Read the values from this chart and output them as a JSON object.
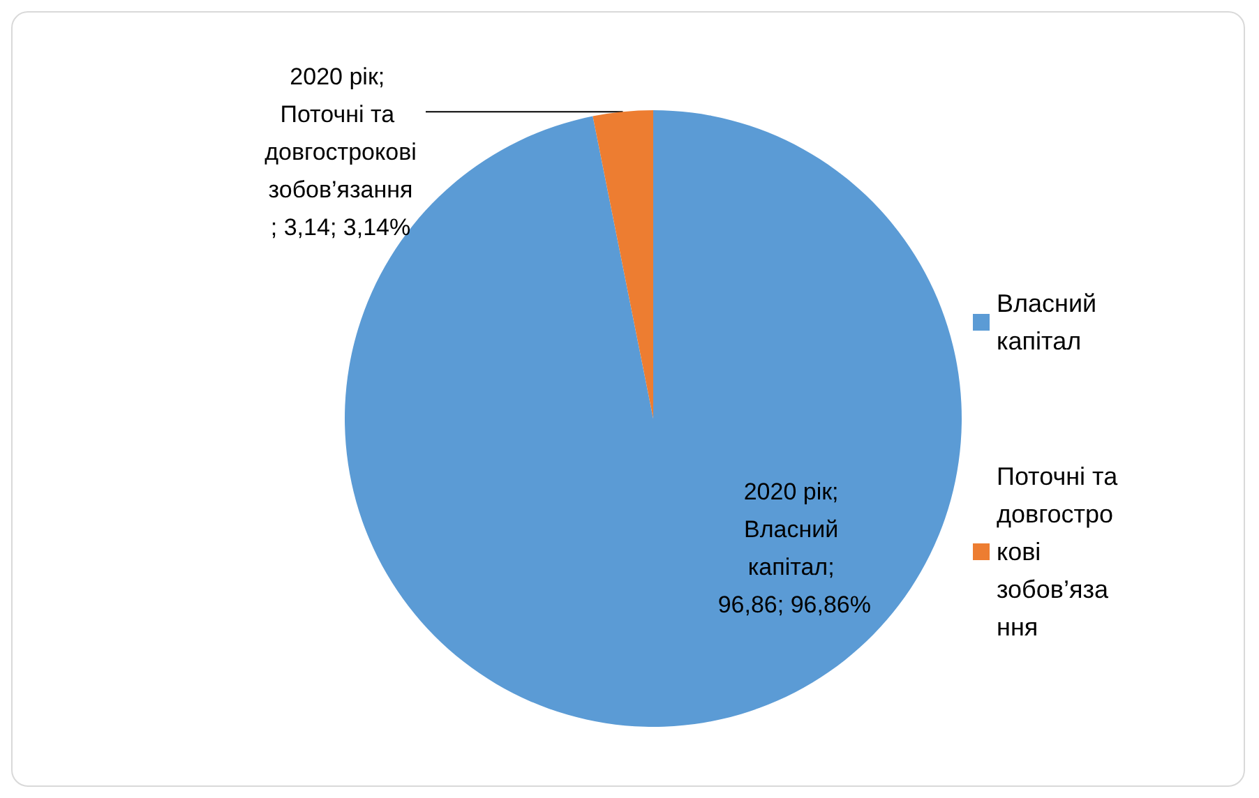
{
  "chart_data": {
    "type": "pie",
    "categories": [
      "Власний капітал",
      "Поточні та довгострокові зобов’язання"
    ],
    "values": [
      96.86,
      3.14
    ],
    "colors": [
      "#5b9bd5",
      "#ed7d31"
    ],
    "value_labels": [
      "2020 рік; Власний капітал; 96,86; 96,86%",
      "2020 рік; Поточні та довгострокові зобов’язання ; 3,14; 3,14%"
    ],
    "legend": "right"
  }
}
